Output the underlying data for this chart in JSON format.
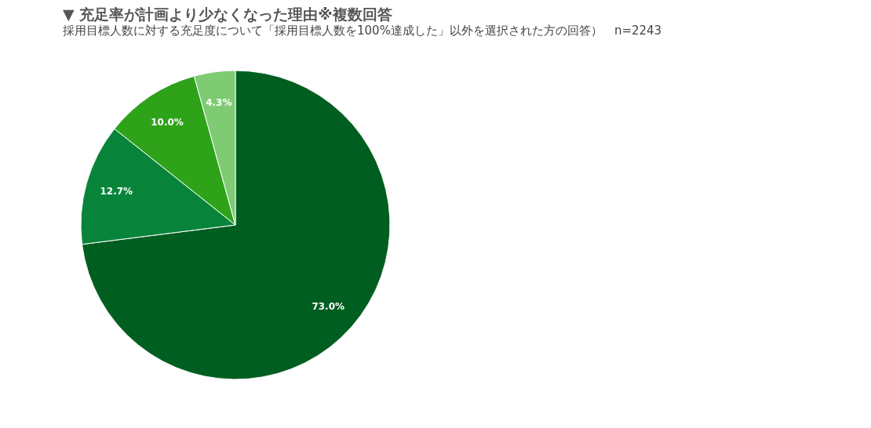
{
  "chart_data": {
    "type": "pie",
    "title": "▼ 充足率が計画より少なくなった理由※複数回答",
    "subtitle": "採用目標人数に対する充足度について「採用目標人数を100%達成した」以外を選択された方の回答）　n=2243",
    "categories": [
      null,
      null,
      null,
      null
    ],
    "values": [
      73.0,
      12.7,
      10.0,
      4.3
    ],
    "value_labels": [
      "73.0%",
      "12.7%",
      "10.0%",
      "4.3%"
    ],
    "colors": [
      "#005e20",
      "#08843a",
      "#2ea31a",
      "#7ecb74"
    ],
    "legend": false
  }
}
